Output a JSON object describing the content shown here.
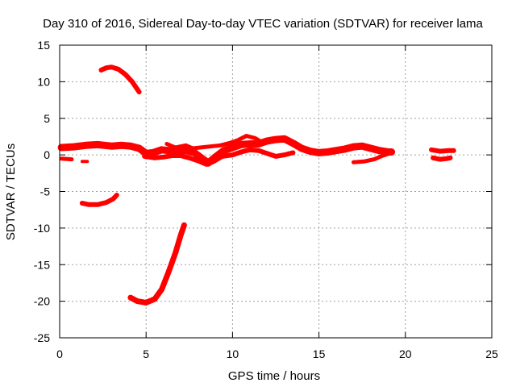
{
  "chart_data": {
    "type": "scatter",
    "title": "Day 310 of 2016, Sidereal Day-to-day VTEC variation (SDTVAR) for receiver lama",
    "xlabel": "GPS time / hours",
    "ylabel": "SDTVAR / TECUs",
    "xlim": [
      0,
      25
    ],
    "ylim": [
      -25,
      15
    ],
    "xticks": [
      0,
      5,
      10,
      15,
      20,
      25
    ],
    "yticks": [
      15,
      10,
      5,
      0,
      -5,
      -10,
      -15,
      -20,
      -25
    ],
    "grid": true,
    "color": "#ff0000",
    "series": [
      {
        "name": "band-main",
        "width": 9,
        "points": [
          [
            0.1,
            1.0
          ],
          [
            0.8,
            1.1
          ],
          [
            1.5,
            1.3
          ],
          [
            2.2,
            1.4
          ],
          [
            3.0,
            1.2
          ],
          [
            3.6,
            1.3
          ],
          [
            4.1,
            1.2
          ],
          [
            4.6,
            0.9
          ],
          [
            5.0,
            0.2
          ],
          [
            5.4,
            0.3
          ],
          [
            5.9,
            0.7
          ],
          [
            6.3,
            0.6
          ],
          [
            6.8,
            0.5
          ],
          [
            7.3,
            0.6
          ],
          [
            7.8,
            0.3
          ],
          [
            8.3,
            -0.6
          ],
          [
            8.6,
            -1.1
          ],
          [
            9.0,
            -0.3
          ],
          [
            9.5,
            0.6
          ],
          [
            10.0,
            1.0
          ],
          [
            10.5,
            1.4
          ],
          [
            11.0,
            1.5
          ],
          [
            11.5,
            1.5
          ],
          [
            12.0,
            1.9
          ],
          [
            12.5,
            2.1
          ],
          [
            13.0,
            2.2
          ],
          [
            13.5,
            1.6
          ],
          [
            14.0,
            0.9
          ],
          [
            14.5,
            0.5
          ],
          [
            15.0,
            0.3
          ],
          [
            15.5,
            0.4
          ],
          [
            16.0,
            0.6
          ],
          [
            16.5,
            0.8
          ],
          [
            17.0,
            1.1
          ],
          [
            17.5,
            1.2
          ],
          [
            18.0,
            0.9
          ],
          [
            18.5,
            0.6
          ],
          [
            19.0,
            0.4
          ],
          [
            19.2,
            0.4
          ]
        ]
      },
      {
        "name": "band-lower",
        "width": 6,
        "points": [
          [
            4.9,
            -0.2
          ],
          [
            5.5,
            -0.4
          ],
          [
            6.0,
            -0.3
          ],
          [
            6.5,
            -0.1
          ],
          [
            7.0,
            -0.1
          ],
          [
            7.5,
            -0.4
          ],
          [
            8.0,
            -0.8
          ],
          [
            8.5,
            -1.3
          ],
          [
            8.9,
            -0.9
          ],
          [
            9.4,
            -0.2
          ],
          [
            10.0,
            0.0
          ],
          [
            10.5,
            0.4
          ],
          [
            11.0,
            0.7
          ],
          [
            11.5,
            0.6
          ],
          [
            12.0,
            0.2
          ],
          [
            12.5,
            -0.2
          ],
          [
            13.0,
            0.0
          ],
          [
            13.5,
            0.3
          ]
        ]
      },
      {
        "name": "band-upper",
        "width": 5,
        "points": [
          [
            6.2,
            1.5
          ],
          [
            6.7,
            1.0
          ],
          [
            7.3,
            1.3
          ],
          [
            7.7,
            0.9
          ],
          [
            9.3,
            1.3
          ],
          [
            9.8,
            1.6
          ],
          [
            10.3,
            2.0
          ],
          [
            10.8,
            2.6
          ],
          [
            11.3,
            2.3
          ],
          [
            11.8,
            1.6
          ]
        ]
      },
      {
        "name": "band-tail",
        "width": 5,
        "points": [
          [
            17.0,
            -1.0
          ],
          [
            17.6,
            -0.9
          ],
          [
            18.2,
            -0.6
          ],
          [
            18.7,
            -0.1
          ],
          [
            19.1,
            0.2
          ]
        ]
      },
      {
        "name": "stub-left",
        "width": 5,
        "points": [
          [
            0.1,
            -0.5
          ],
          [
            0.7,
            -0.6
          ]
        ]
      },
      {
        "name": "stub-left-2",
        "width": 4,
        "points": [
          [
            1.3,
            -0.9
          ],
          [
            1.6,
            -0.9
          ]
        ]
      },
      {
        "name": "late-block-upper",
        "width": 6,
        "points": [
          [
            21.5,
            0.7
          ],
          [
            22.0,
            0.5
          ],
          [
            22.5,
            0.6
          ],
          [
            22.8,
            0.6
          ]
        ]
      },
      {
        "name": "late-block-lower",
        "width": 6,
        "points": [
          [
            21.6,
            -0.4
          ],
          [
            22.0,
            -0.6
          ],
          [
            22.4,
            -0.5
          ],
          [
            22.6,
            -0.4
          ]
        ]
      },
      {
        "name": "arc-upper",
        "width": 6,
        "points": [
          [
            2.4,
            11.6
          ],
          [
            2.7,
            11.9
          ],
          [
            3.0,
            12.0
          ],
          [
            3.4,
            11.7
          ],
          [
            3.8,
            11.0
          ],
          [
            4.2,
            10.0
          ],
          [
            4.6,
            8.6
          ]
        ]
      },
      {
        "name": "arc-middle",
        "width": 6,
        "points": [
          [
            1.3,
            -6.6
          ],
          [
            1.7,
            -6.8
          ],
          [
            2.2,
            -6.8
          ],
          [
            2.7,
            -6.5
          ],
          [
            3.1,
            -6.0
          ],
          [
            3.3,
            -5.5
          ]
        ]
      },
      {
        "name": "arc-lower",
        "width": 7,
        "points": [
          [
            4.1,
            -19.5
          ],
          [
            4.5,
            -20.0
          ],
          [
            5.0,
            -20.2
          ],
          [
            5.5,
            -19.7
          ],
          [
            5.9,
            -18.4
          ],
          [
            6.3,
            -16.0
          ],
          [
            6.7,
            -13.4
          ],
          [
            7.0,
            -11.0
          ],
          [
            7.2,
            -9.6
          ]
        ]
      }
    ]
  }
}
